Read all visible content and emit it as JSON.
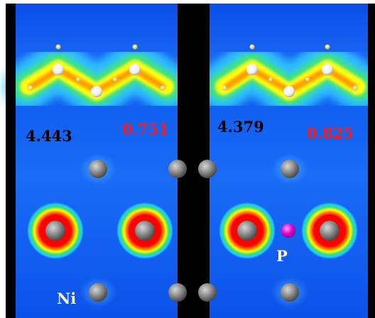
{
  "panels": [
    {
      "distance_label": "4.443",
      "value_label": "0.751"
    },
    {
      "distance_label": "4.379",
      "value_label": "0.825"
    }
  ],
  "atom_labels": {
    "ni": "Ni",
    "p": "P"
  },
  "colors": {
    "background": "#0a4de8",
    "separator": "#000000",
    "distance_text": "#000000",
    "value_text": "#ff1a1a",
    "atom_text": "#fff8b8",
    "ni_atom": "#8a8a8a",
    "p_atom": "#e000d0",
    "density_high": "#ff0000",
    "density_low": "#ffff00"
  }
}
